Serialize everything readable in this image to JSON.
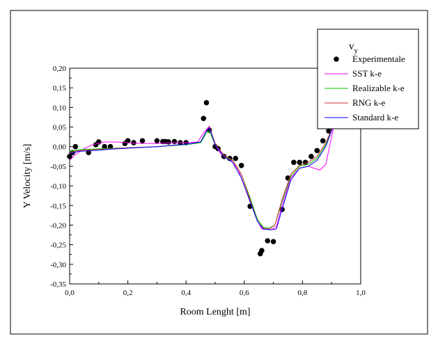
{
  "chart_data": {
    "type": "line",
    "title": "",
    "xlabel": "Room Lenght [m]",
    "ylabel": "Y Velocity [m/s]",
    "xlim": [
      0,
      1.0
    ],
    "ylim": [
      -0.35,
      0.2
    ],
    "x_ticks": [
      0.0,
      0.2,
      0.4,
      0.6,
      0.8,
      1.0
    ],
    "x_tick_labels": [
      "0,0",
      "0,2",
      "0,4",
      "0,6",
      "0,8",
      "1,0"
    ],
    "y_ticks": [
      -0.35,
      -0.3,
      -0.25,
      -0.2,
      -0.15,
      -0.1,
      -0.05,
      0.0,
      0.05,
      0.1,
      0.15,
      0.2
    ],
    "y_tick_labels": [
      "-0,35",
      "-0,30",
      "-0,25",
      "-0,20",
      "-0,15",
      "-0,10",
      "-0,05",
      "0,00",
      "0,05",
      "0,10",
      "0,15",
      "0,20"
    ],
    "grid": false,
    "legend": {
      "title_main": "v",
      "title_sub": "y",
      "placement": "top-right"
    },
    "series": [
      {
        "name": "Experimentale",
        "kind": "scatter",
        "color": "#000000",
        "points": [
          [
            0.0,
            -0.025
          ],
          [
            0.01,
            -0.015
          ],
          [
            0.02,
            0.0
          ],
          [
            0.065,
            -0.015
          ],
          [
            0.09,
            0.005
          ],
          [
            0.1,
            0.012
          ],
          [
            0.12,
            0.0
          ],
          [
            0.14,
            0.0
          ],
          [
            0.19,
            0.008
          ],
          [
            0.2,
            0.015
          ],
          [
            0.22,
            0.01
          ],
          [
            0.25,
            0.015
          ],
          [
            0.3,
            0.015
          ],
          [
            0.32,
            0.013
          ],
          [
            0.33,
            0.013
          ],
          [
            0.34,
            0.012
          ],
          [
            0.36,
            0.013
          ],
          [
            0.38,
            0.01
          ],
          [
            0.4,
            0.01
          ],
          [
            0.46,
            0.072
          ],
          [
            0.47,
            0.112
          ],
          [
            0.48,
            0.042
          ],
          [
            0.5,
            0.0
          ],
          [
            0.51,
            -0.005
          ],
          [
            0.53,
            -0.025
          ],
          [
            0.55,
            -0.03
          ],
          [
            0.57,
            -0.03
          ],
          [
            0.59,
            -0.048
          ],
          [
            0.62,
            -0.152
          ],
          [
            0.655,
            -0.273
          ],
          [
            0.66,
            -0.265
          ],
          [
            0.68,
            -0.24
          ],
          [
            0.7,
            -0.242
          ],
          [
            0.73,
            -0.16
          ],
          [
            0.75,
            -0.08
          ],
          [
            0.77,
            -0.04
          ],
          [
            0.79,
            -0.04
          ],
          [
            0.81,
            -0.04
          ],
          [
            0.83,
            -0.025
          ],
          [
            0.85,
            -0.01
          ],
          [
            0.87,
            0.015
          ],
          [
            0.89,
            0.04
          ]
        ]
      },
      {
        "name": "SST k-e",
        "kind": "line",
        "color": "#ff00ff",
        "points": [
          [
            0.0,
            -0.035
          ],
          [
            0.02,
            -0.02
          ],
          [
            0.05,
            -0.005
          ],
          [
            0.08,
            0.005
          ],
          [
            0.12,
            0.012
          ],
          [
            0.16,
            0.012
          ],
          [
            0.2,
            0.01
          ],
          [
            0.25,
            0.008
          ],
          [
            0.3,
            0.008
          ],
          [
            0.35,
            0.01
          ],
          [
            0.4,
            0.01
          ],
          [
            0.44,
            0.012
          ],
          [
            0.46,
            0.035
          ],
          [
            0.48,
            0.052
          ],
          [
            0.5,
            0.005
          ],
          [
            0.52,
            -0.02
          ],
          [
            0.55,
            -0.03
          ],
          [
            0.58,
            -0.06
          ],
          [
            0.61,
            -0.12
          ],
          [
            0.64,
            -0.18
          ],
          [
            0.66,
            -0.21
          ],
          [
            0.69,
            -0.212
          ],
          [
            0.71,
            -0.205
          ],
          [
            0.73,
            -0.15
          ],
          [
            0.76,
            -0.08
          ],
          [
            0.79,
            -0.055
          ],
          [
            0.82,
            -0.05
          ],
          [
            0.86,
            -0.06
          ],
          [
            0.88,
            -0.045
          ],
          [
            0.91,
            0.06
          ]
        ]
      },
      {
        "name": "Realizable k-e",
        "kind": "line",
        "color": "#00cc00",
        "points": [
          [
            0.0,
            -0.012
          ],
          [
            0.03,
            -0.008
          ],
          [
            0.08,
            -0.006
          ],
          [
            0.15,
            -0.004
          ],
          [
            0.2,
            -0.003
          ],
          [
            0.3,
            0.0
          ],
          [
            0.4,
            0.005
          ],
          [
            0.45,
            0.01
          ],
          [
            0.47,
            0.035
          ],
          [
            0.48,
            0.04
          ],
          [
            0.5,
            0.005
          ],
          [
            0.53,
            -0.025
          ],
          [
            0.56,
            -0.035
          ],
          [
            0.59,
            -0.07
          ],
          [
            0.62,
            -0.13
          ],
          [
            0.645,
            -0.185
          ],
          [
            0.665,
            -0.205
          ],
          [
            0.685,
            -0.208
          ],
          [
            0.705,
            -0.2
          ],
          [
            0.73,
            -0.14
          ],
          [
            0.76,
            -0.075
          ],
          [
            0.79,
            -0.05
          ],
          [
            0.82,
            -0.045
          ],
          [
            0.85,
            -0.03
          ],
          [
            0.88,
            0.005
          ],
          [
            0.91,
            0.06
          ]
        ]
      },
      {
        "name": "RNG k-e",
        "kind": "line",
        "color": "#cc3333",
        "points": [
          [
            0.0,
            -0.015
          ],
          [
            0.03,
            -0.01
          ],
          [
            0.08,
            -0.008
          ],
          [
            0.15,
            -0.005
          ],
          [
            0.2,
            -0.003
          ],
          [
            0.3,
            0.0
          ],
          [
            0.4,
            0.006
          ],
          [
            0.45,
            0.012
          ],
          [
            0.47,
            0.04
          ],
          [
            0.48,
            0.05
          ],
          [
            0.5,
            0.008
          ],
          [
            0.53,
            -0.022
          ],
          [
            0.56,
            -0.035
          ],
          [
            0.59,
            -0.07
          ],
          [
            0.62,
            -0.135
          ],
          [
            0.645,
            -0.19
          ],
          [
            0.665,
            -0.208
          ],
          [
            0.685,
            -0.21
          ],
          [
            0.705,
            -0.2
          ],
          [
            0.73,
            -0.135
          ],
          [
            0.76,
            -0.07
          ],
          [
            0.79,
            -0.048
          ],
          [
            0.82,
            -0.04
          ],
          [
            0.85,
            -0.025
          ],
          [
            0.88,
            0.01
          ],
          [
            0.91,
            0.06
          ]
        ]
      },
      {
        "name": "Standard k-e",
        "kind": "line",
        "color": "#0000ff",
        "points": [
          [
            0.0,
            -0.018
          ],
          [
            0.03,
            -0.012
          ],
          [
            0.08,
            -0.01
          ],
          [
            0.15,
            -0.006
          ],
          [
            0.2,
            -0.004
          ],
          [
            0.3,
            0.0
          ],
          [
            0.4,
            0.006
          ],
          [
            0.45,
            0.012
          ],
          [
            0.47,
            0.04
          ],
          [
            0.48,
            0.048
          ],
          [
            0.5,
            0.005
          ],
          [
            0.53,
            -0.025
          ],
          [
            0.56,
            -0.04
          ],
          [
            0.59,
            -0.08
          ],
          [
            0.62,
            -0.14
          ],
          [
            0.645,
            -0.19
          ],
          [
            0.665,
            -0.21
          ],
          [
            0.69,
            -0.212
          ],
          [
            0.71,
            -0.21
          ],
          [
            0.73,
            -0.16
          ],
          [
            0.76,
            -0.085
          ],
          [
            0.79,
            -0.055
          ],
          [
            0.82,
            -0.05
          ],
          [
            0.85,
            -0.035
          ],
          [
            0.88,
            0.0
          ],
          [
            0.91,
            0.06
          ]
        ]
      }
    ]
  }
}
